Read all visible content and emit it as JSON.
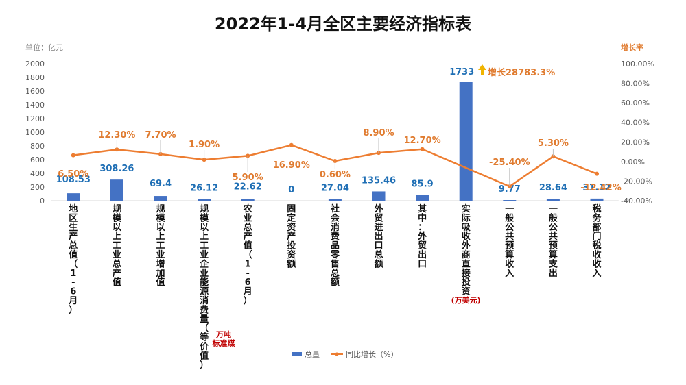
{
  "chart_data": {
    "type": "bar",
    "title": "2022年1-4月全区主要经济指标表",
    "ylabel": "单位：亿元",
    "y2label": "增长率",
    "ylim": [
      0,
      2000
    ],
    "y2lim": [
      -40,
      100
    ],
    "yticks": [
      "0",
      "200",
      "400",
      "600",
      "800",
      "1000",
      "1200",
      "1400",
      "1600",
      "1800",
      "2000"
    ],
    "y2ticks": [
      "-40.00%",
      "-20.00%",
      "0.00%",
      "20.00%",
      "40.00%",
      "60.00%",
      "80.00%",
      "100.00%"
    ],
    "categories": [
      "地区生产总值（1-6月）",
      "规模以上工业总产值",
      "规模以上工业增加值",
      "规模以上工业企业能源消费量（等价值）",
      "农业总产值（1-6月）",
      "固定资产投资额",
      "社会消费品零售总额",
      "外贸进出口总额",
      "其中：外贸出口",
      "实际吸收外商直接投资",
      "一般公共预算收入",
      "一般公共预算支出",
      "税务部门税收收入"
    ],
    "series": [
      {
        "name": "总量",
        "values": [
          108.53,
          308.26,
          69.4,
          26.12,
          22.62,
          0,
          27.04,
          135.46,
          85.9,
          1733,
          9.77,
          28.64,
          31.12
        ],
        "labels": [
          "108.53",
          "308.26",
          "69.4",
          "26.12",
          "22.62",
          "0",
          "27.04",
          "135.46",
          "85.9",
          "1733",
          "9.77",
          "28.64",
          "31.12"
        ],
        "color": "#4472c4"
      },
      {
        "name": "同比增长（%）",
        "values": [
          6.5,
          12.3,
          7.7,
          1.9,
          5.9,
          16.9,
          0.6,
          8.9,
          12.7,
          null,
          -25.4,
          5.3,
          -12.42
        ],
        "labels": [
          "6.50%",
          "12.30%",
          "7.70%",
          "1.90%",
          "5.90%",
          "16.90%",
          "0.60%",
          "8.90%",
          "12.70%",
          "",
          "-25.40%",
          "5.30%",
          "-12.42%"
        ],
        "color": "#ed7d31"
      }
    ],
    "annotations": {
      "energy_unit": [
        "万吨",
        "标准煤"
      ],
      "fdi_unit": "(万美元)",
      "fdi_growth": "增长28783.3%",
      "arrow_color": "#f0b400"
    },
    "legend_position": "bottom",
    "grid": false
  }
}
